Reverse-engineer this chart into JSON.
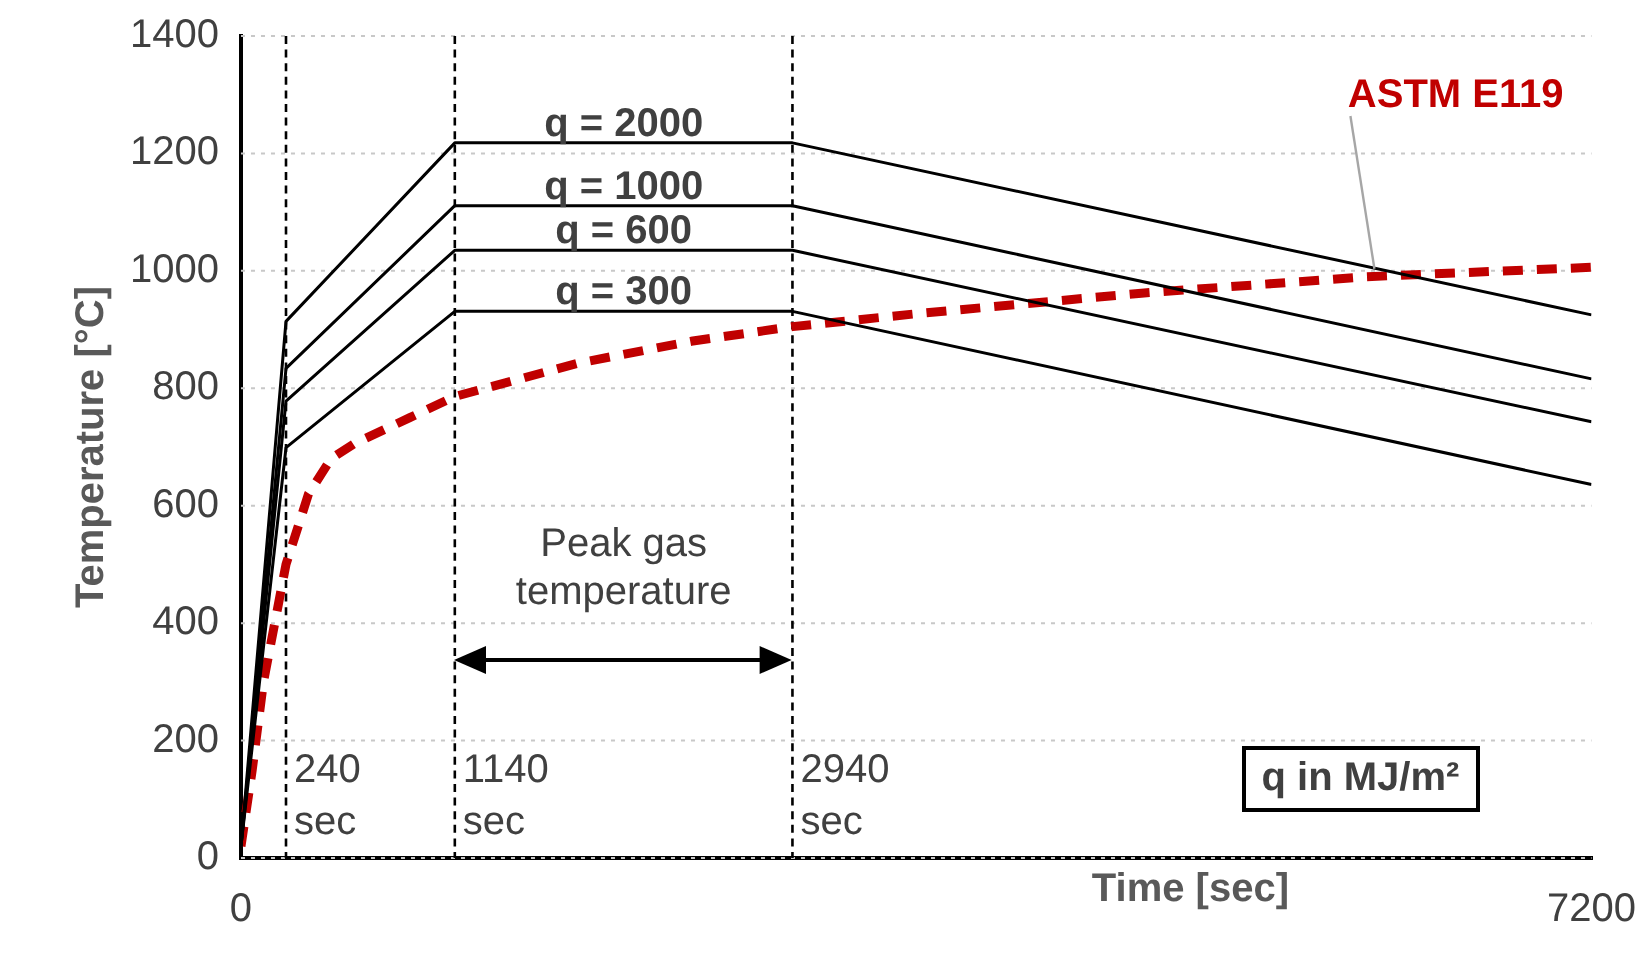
{
  "chart_data": {
    "type": "line",
    "xlabel": "Time [sec]",
    "ylabel": "Temperature [°C]",
    "xlim": [
      0,
      7200
    ],
    "xticks": [
      0,
      7200
    ],
    "ylim": [
      0,
      1400
    ],
    "yticks": [
      0,
      200,
      400,
      600,
      800,
      1000,
      1200,
      1400
    ],
    "grid": "y",
    "legend": false,
    "series": [
      {
        "name": "q = 2000",
        "color": "#000000",
        "x": [
          0,
          240,
          1140,
          2940,
          7200
        ],
        "values": [
          20,
          914,
          1218,
          1218,
          925
        ]
      },
      {
        "name": "q = 1000",
        "color": "#000000",
        "x": [
          0,
          240,
          1140,
          2940,
          7200
        ],
        "values": [
          20,
          834,
          1111,
          1111,
          816
        ]
      },
      {
        "name": "q = 600",
        "color": "#000000",
        "x": [
          0,
          240,
          1140,
          2940,
          7200
        ],
        "values": [
          20,
          778,
          1035,
          1035,
          743
        ]
      },
      {
        "name": "q = 300",
        "color": "#000000",
        "x": [
          0,
          240,
          1140,
          2940,
          7200
        ],
        "values": [
          20,
          699,
          931,
          931,
          636
        ]
      },
      {
        "name": "ASTM E119",
        "color": "#c00000",
        "line_style": "dashed",
        "x": [
          0,
          60,
          120,
          240,
          360,
          480,
          600,
          900,
          1140,
          1800,
          2400,
          2940,
          3600,
          4800,
          6000,
          7200
        ],
        "values": [
          20,
          150,
          300,
          500,
          620,
          680,
          705,
          750,
          786,
          843,
          880,
          905,
          927,
          962,
          990,
          1006
        ]
      }
    ],
    "ref_lines": [
      {
        "axis": "x",
        "value": 240,
        "label": "240 sec",
        "line_style": "dashed",
        "color": "#000000"
      },
      {
        "axis": "x",
        "value": 1140,
        "label": "1140 sec",
        "line_style": "dashed",
        "color": "#000000"
      },
      {
        "axis": "x",
        "value": 2940,
        "label": "2940 sec",
        "line_style": "dashed",
        "color": "#000000"
      }
    ],
    "annotations": [
      "Peak gas temperature",
      "q in MJ/m²"
    ]
  }
}
